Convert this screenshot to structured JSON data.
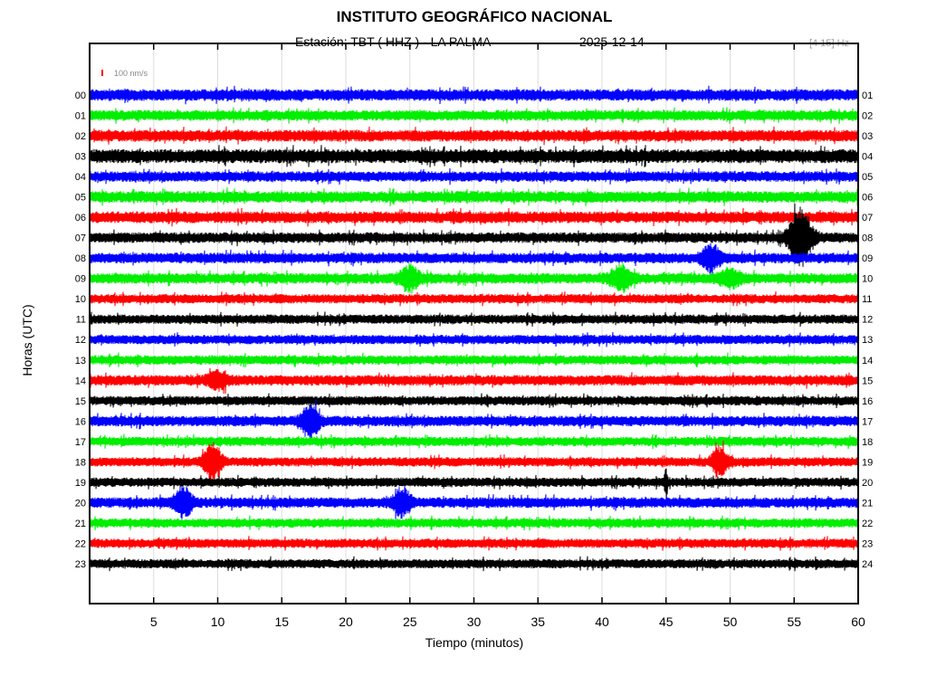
{
  "chart_data": {
    "type": "line",
    "title": "INSTITUTO GEOGRÁFICO NACIONAL",
    "subtitle_station": "Estación:  TBT ( HHZ ) - LA PALMA",
    "subtitle_date": "2025-12-14",
    "filter_band": "[4 15] Hz",
    "scale_label": "100 nm/s",
    "xlabel": "Tiempo (minutos)",
    "ylabel": "Horas (UTC)",
    "xlim": [
      0,
      60
    ],
    "x_ticks": [
      "5",
      "10",
      "15",
      "20",
      "25",
      "30",
      "35",
      "40",
      "45",
      "50",
      "55",
      "60"
    ],
    "left_labels": [
      "00",
      "01",
      "02",
      "03",
      "04",
      "05",
      "06",
      "07",
      "08",
      "09",
      "10",
      "11",
      "12",
      "13",
      "14",
      "15",
      "16",
      "17",
      "18",
      "19",
      "20",
      "21",
      "22",
      "23"
    ],
    "right_labels": [
      "01",
      "02",
      "03",
      "04",
      "05",
      "06",
      "07",
      "08",
      "09",
      "10",
      "11",
      "12",
      "13",
      "14",
      "15",
      "16",
      "17",
      "18",
      "19",
      "20",
      "21",
      "22",
      "23",
      "24"
    ],
    "trace_colors": [
      "#0000ff",
      "#00ee00",
      "#ff0000",
      "#000000"
    ],
    "scale_color": "#ff0000",
    "row_noise": [
      1.0,
      0.9,
      1.0,
      1.2,
      0.9,
      1.0,
      1.0,
      0.9,
      0.9,
      0.9,
      0.8,
      0.8,
      0.8,
      0.8,
      0.9,
      0.8,
      0.9,
      0.8,
      0.8,
      0.8,
      0.9,
      0.8,
      0.8,
      0.8
    ],
    "events": [
      {
        "hour": 7,
        "minute": 55.5,
        "amplitude": 5.0,
        "duration": 1.2
      },
      {
        "hour": 8,
        "minute": 48.5,
        "amplitude": 2.2,
        "duration": 1.0
      },
      {
        "hour": 9,
        "minute": 25.0,
        "amplitude": 2.0,
        "duration": 1.0
      },
      {
        "hour": 9,
        "minute": 41.5,
        "amplitude": 2.0,
        "duration": 1.2
      },
      {
        "hour": 9,
        "minute": 50.0,
        "amplitude": 1.4,
        "duration": 1.2
      },
      {
        "hour": 14,
        "minute": 10.0,
        "amplitude": 1.4,
        "duration": 1.0
      },
      {
        "hour": 16,
        "minute": 17.2,
        "amplitude": 3.0,
        "duration": 0.9
      },
      {
        "hour": 18,
        "minute": 9.6,
        "amplitude": 3.5,
        "duration": 0.9
      },
      {
        "hour": 18,
        "minute": 49.2,
        "amplitude": 2.2,
        "duration": 0.9
      },
      {
        "hour": 19,
        "minute": 45.0,
        "amplitude": 3.5,
        "duration": 0.15
      },
      {
        "hour": 20,
        "minute": 7.3,
        "amplitude": 2.6,
        "duration": 0.9
      },
      {
        "hour": 20,
        "minute": 24.4,
        "amplitude": 2.4,
        "duration": 0.9
      }
    ]
  }
}
